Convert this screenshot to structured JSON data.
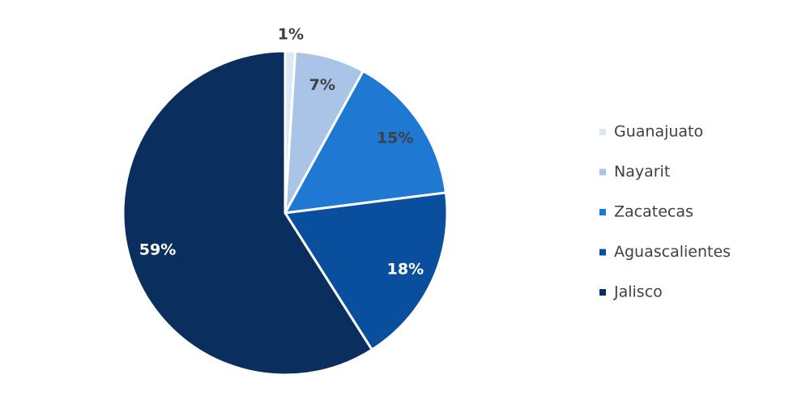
{
  "chart_data": {
    "type": "pie",
    "categories": [
      "Guanajuato",
      "Nayarit",
      "Zacatecas",
      "Aguascalientes",
      "Jalisco"
    ],
    "values": [
      1,
      7,
      15,
      18,
      59
    ],
    "value_labels": [
      "1%",
      "7%",
      "15%",
      "18%",
      "59%"
    ],
    "colors": [
      "#dde8f5",
      "#a9c4e6",
      "#1f78d1",
      "#0a4f9e",
      "#0a2f5e"
    ],
    "legend": "right"
  }
}
